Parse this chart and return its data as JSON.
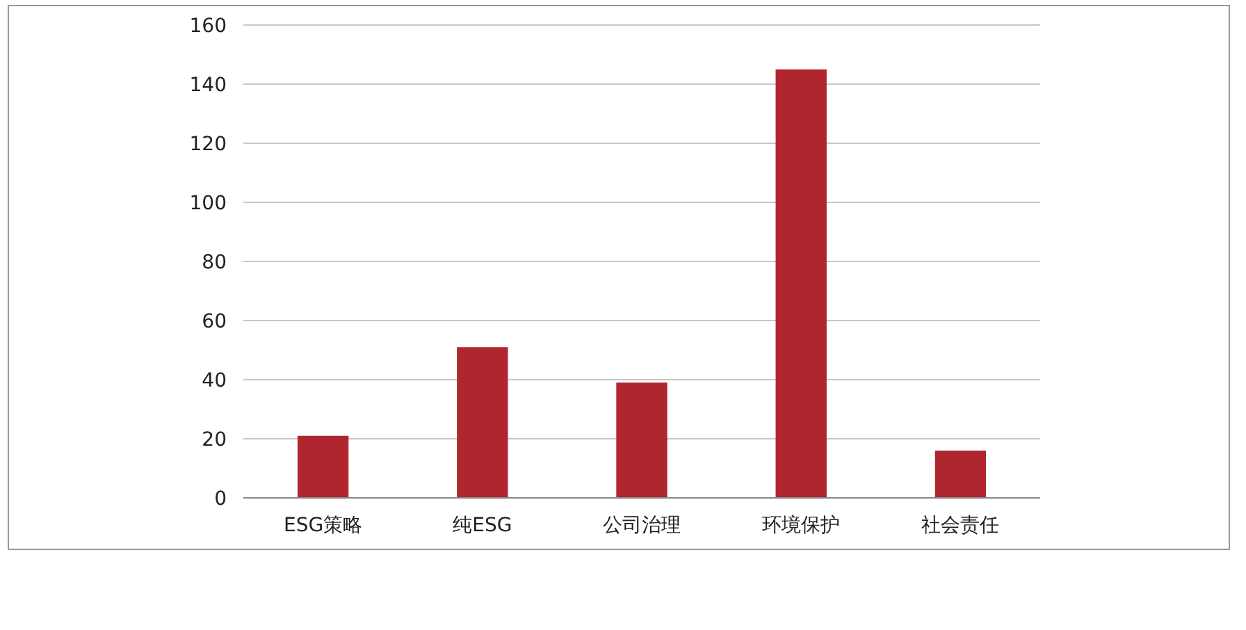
{
  "chart_data": {
    "type": "bar",
    "categories": [
      "ESG策略",
      "纯ESG",
      "公司治理",
      "环境保护",
      "社会责任"
    ],
    "values": [
      21,
      51,
      39,
      145,
      16
    ],
    "color": "#b0262f",
    "ylim": [
      0,
      160
    ],
    "yticks": [
      0,
      20,
      40,
      60,
      80,
      100,
      120,
      140,
      160
    ],
    "grid": "y"
  }
}
